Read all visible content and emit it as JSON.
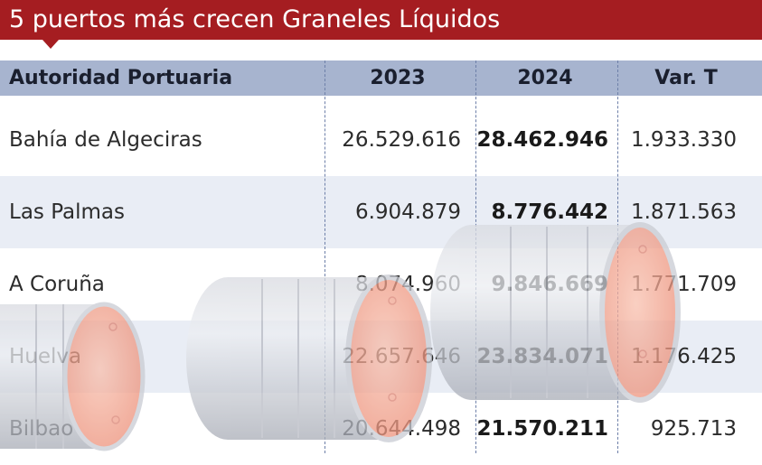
{
  "title": "5 puertos más crecen Graneles Líquidos",
  "columns": {
    "port": "Autoridad Portuaria",
    "y2023": "2023",
    "y2024": "2024",
    "var": "Var. T"
  },
  "rows": [
    {
      "port": "Bahía de Algeciras",
      "y2023": "26.529.616",
      "y2024": "28.462.946",
      "var": "1.933.330"
    },
    {
      "port": "Las Palmas",
      "y2023": "6.904.879",
      "y2024": "8.776.442",
      "var": "1.871.563"
    },
    {
      "port": "A Coruña",
      "y2023": "8.074.960",
      "y2024": "9.846.669",
      "var": "1.771.709"
    },
    {
      "port": "Huelva",
      "y2023": "22.657.646",
      "y2024": "23.834.071",
      "var": "1.176.425"
    },
    {
      "port": "Bilbao",
      "y2023": "20.644.498",
      "y2024": "21.570.211",
      "var": "925.713"
    }
  ],
  "colors": {
    "title_bg": "#a51d21",
    "header_bg": "#a7b4cf",
    "row_alt_bg": "#e9edf5",
    "barrel_body": "#c9ccd3",
    "barrel_lid": "#f4a892"
  },
  "decoration": "oil-barrel-icons"
}
